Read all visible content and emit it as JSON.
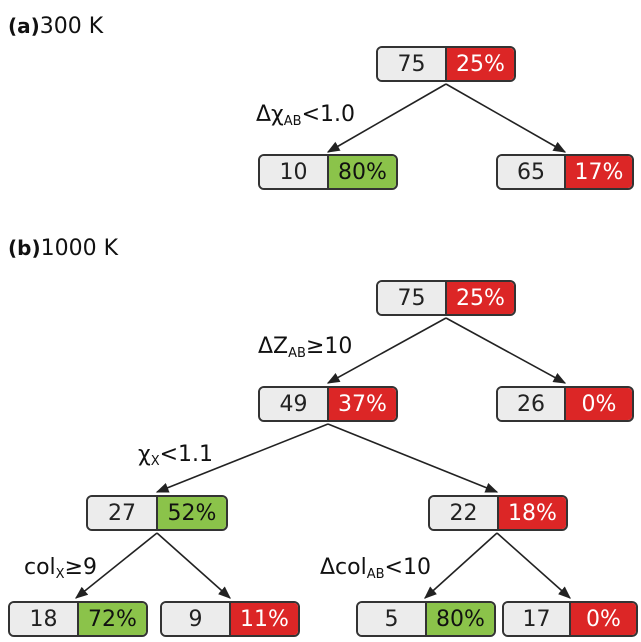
{
  "colors": {
    "red": "#dc2626",
    "green": "#8bc34a",
    "gray": "#ececec"
  },
  "panel_a": {
    "letter": "(a)",
    "temp": "300 K",
    "nodes": {
      "root": {
        "count": "75",
        "pct": "25%",
        "color": "red"
      },
      "left": {
        "count": "10",
        "pct": "80%",
        "color": "green"
      },
      "right": {
        "count": "65",
        "pct": "17%",
        "color": "red"
      }
    },
    "splits": {
      "root": {
        "pre": "Δχ",
        "sub": "AB",
        "post": "<1.0"
      }
    }
  },
  "panel_b": {
    "letter": "(b)",
    "temp": "1000 K",
    "nodes": {
      "root": {
        "count": "75",
        "pct": "25%",
        "color": "red"
      },
      "n1": {
        "count": "49",
        "pct": "37%",
        "color": "red"
      },
      "n2": {
        "count": "26",
        "pct": "0%",
        "color": "red"
      },
      "n3": {
        "count": "27",
        "pct": "52%",
        "color": "green"
      },
      "n4": {
        "count": "22",
        "pct": "18%",
        "color": "red"
      },
      "n5": {
        "count": "18",
        "pct": "72%",
        "color": "green"
      },
      "n6": {
        "count": "9",
        "pct": "11%",
        "color": "red"
      },
      "n7": {
        "count": "5",
        "pct": "80%",
        "color": "green"
      },
      "n8": {
        "count": "17",
        "pct": "0%",
        "color": "red"
      }
    },
    "splits": {
      "root": {
        "pre": "ΔZ",
        "sub": "AB",
        "post": "≥10"
      },
      "n1": {
        "pre": "χ",
        "sub": "X",
        "post": "<1.1"
      },
      "n3": {
        "pre": "col",
        "sub": "X",
        "post": "≥9"
      },
      "n4": {
        "pre": "Δcol",
        "sub": "AB",
        "post": "<10"
      }
    }
  }
}
